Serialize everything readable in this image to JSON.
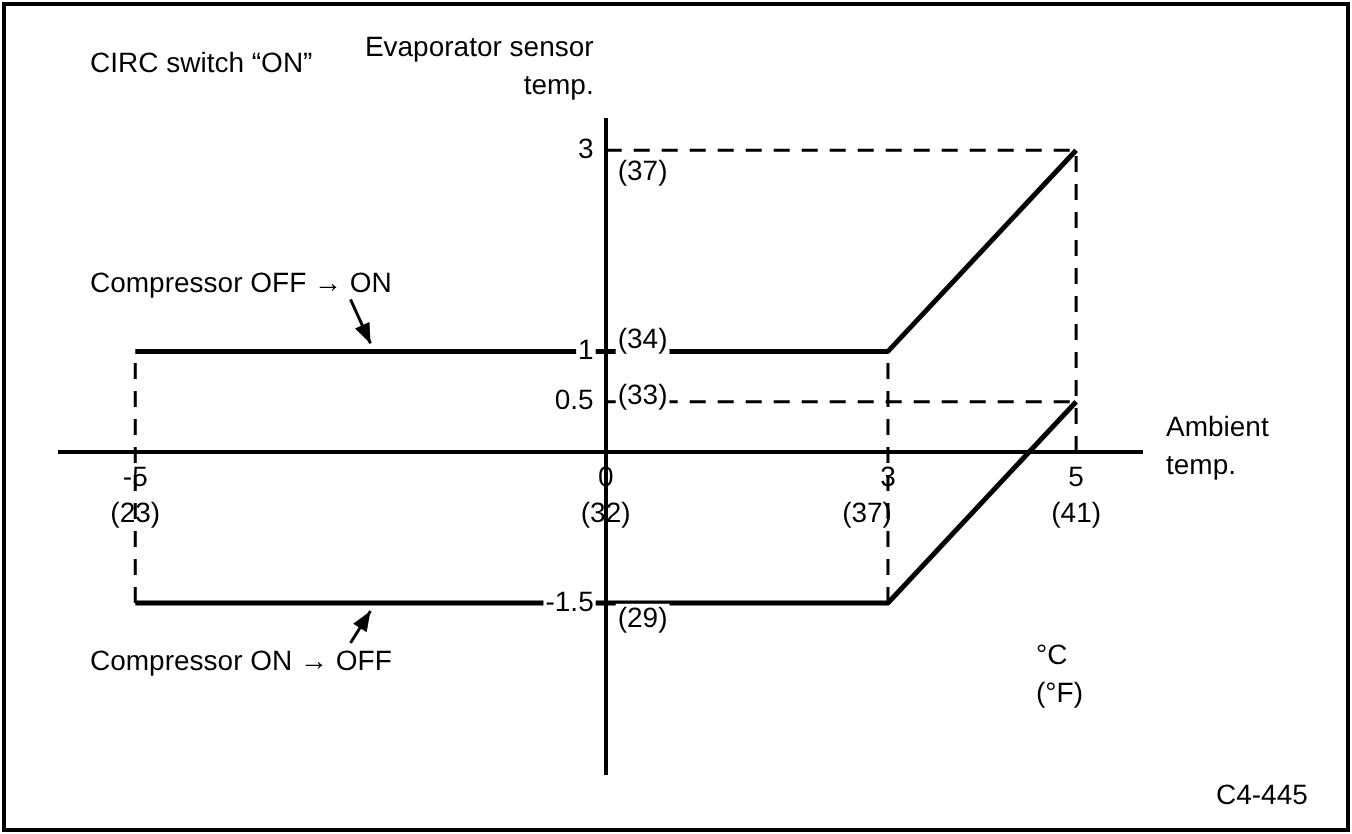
{
  "chart_data": {
    "type": "line",
    "xlabel": "Ambient temp.",
    "ylabel": "Evaporator sensor temp.",
    "xlim": [
      -5.8,
      5.7
    ],
    "ylim": [
      -3.2,
      3.3
    ],
    "xticks": [
      -5,
      0,
      3,
      5
    ],
    "yticks": [
      -1.5,
      0.5,
      1,
      3
    ],
    "x2lim": [
      21.56,
      42.26
    ],
    "x2ticks": [
      {
        "value": 23,
        "label": "(23)"
      },
      {
        "value": 32,
        "label": "(32)"
      },
      {
        "value": 37,
        "label": "(37)"
      },
      {
        "value": 41,
        "label": "(41)"
      }
    ],
    "y2lim": [
      26.24,
      37.94
    ],
    "y2ticks": [
      {
        "value": 29,
        "label": "(29)"
      },
      {
        "value": 33,
        "label": "(33)"
      },
      {
        "value": 34,
        "label": "(34)"
      },
      {
        "value": 37,
        "label": "(37)"
      }
    ],
    "series": [
      {
        "name": "Compressor OFF → ON",
        "color": "#000000",
        "x": [
          -5,
          3,
          5
        ],
        "values": [
          1,
          1,
          3
        ]
      },
      {
        "name": "Compressor ON → OFF",
        "color": "#000000",
        "x": [
          -5,
          3,
          5
        ],
        "values": [
          -1.5,
          -1.5,
          0.5
        ]
      }
    ],
    "ref_lines": [
      {
        "axis": "x",
        "value": -5,
        "line_style": "dashed"
      },
      {
        "axis": "x",
        "value": 3,
        "line_style": "dashed"
      },
      {
        "axis": "x",
        "value": 5,
        "line_style": "dashed"
      },
      {
        "axis": "y",
        "value": 3,
        "line_style": "dashed"
      },
      {
        "axis": "y",
        "value": 0.5,
        "line_style": "dashed"
      }
    ],
    "annotations": [
      "CIRC switch “ON”",
      "°C\n(°F)",
      "C4-445"
    ],
    "grid": false,
    "marker": "none",
    "line_style": "solid"
  }
}
